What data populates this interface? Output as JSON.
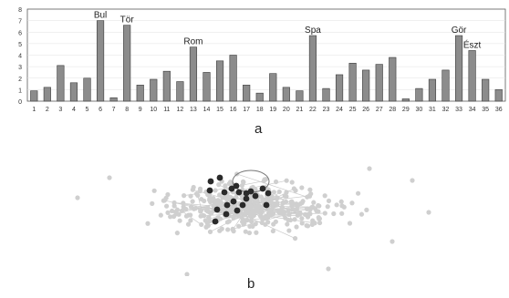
{
  "figure": {
    "panel_a_label": "a",
    "panel_b_label": "b"
  },
  "colors": {
    "bar": "#8c8c8c",
    "bar_stroke": "#3c3c3c",
    "axis": "#5a5a5a",
    "grid": "#e2e2e2",
    "node_light": "#cfcfcf",
    "node_dark": "#2a2a2a",
    "edge": "#c9c9c9"
  },
  "chart_data": [
    {
      "type": "bar",
      "categories": [
        "1",
        "2",
        "3",
        "4",
        "5",
        "6",
        "7",
        "8",
        "9",
        "10",
        "11",
        "12",
        "13",
        "14",
        "15",
        "16",
        "17",
        "18",
        "19",
        "20",
        "21",
        "22",
        "23",
        "24",
        "25",
        "26",
        "27",
        "28",
        "29",
        "30",
        "31",
        "32",
        "33",
        "34",
        "35",
        "36"
      ],
      "values": [
        0.9,
        1.2,
        3.1,
        1.6,
        2.0,
        7.0,
        0.3,
        6.6,
        1.4,
        1.9,
        2.6,
        1.7,
        4.7,
        2.5,
        3.5,
        4.0,
        1.4,
        0.7,
        2.4,
        1.2,
        0.9,
        5.7,
        1.1,
        2.3,
        3.3,
        2.7,
        3.2,
        3.8,
        0.2,
        1.1,
        1.9,
        2.7,
        5.7,
        4.4,
        1.9,
        1.0
      ],
      "ylim": [
        0,
        8
      ],
      "yticks": [
        "0",
        "1",
        "2",
        "3",
        "4",
        "5",
        "6",
        "7",
        "8"
      ],
      "grid": true,
      "title": "",
      "xlabel": "",
      "ylabel": "",
      "annotations": [
        {
          "category": "6",
          "text": "Bul"
        },
        {
          "category": "8",
          "text": "Tör"
        },
        {
          "category": "13",
          "text": "Rom"
        },
        {
          "category": "22",
          "text": "Spa"
        },
        {
          "category": "33",
          "text": "Gör"
        },
        {
          "category": "34",
          "text": "Észt"
        }
      ]
    }
  ],
  "network": {
    "description_visible": false
  }
}
